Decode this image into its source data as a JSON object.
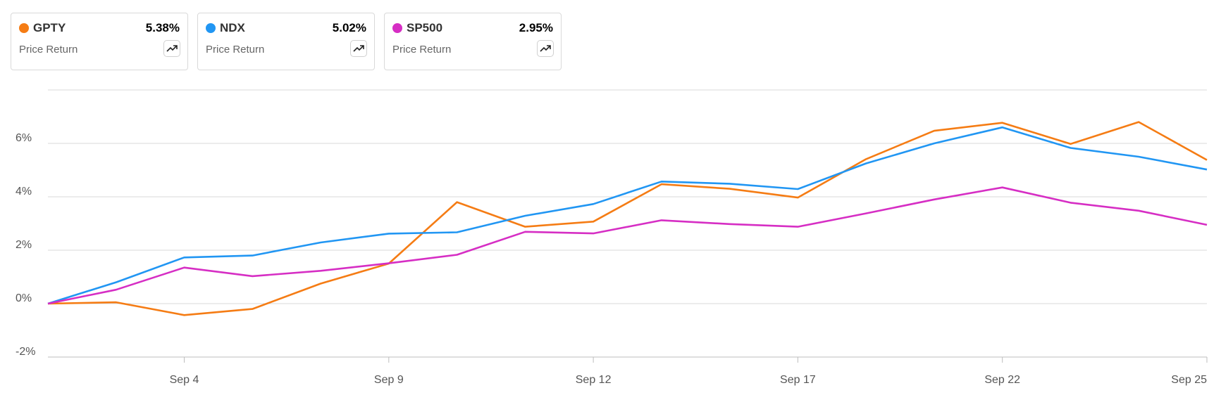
{
  "cards": [
    {
      "ticker": "GPTY",
      "value": "5.38%",
      "sub": "Price Return",
      "color": "#f57c14",
      "icon": "trending-up-icon"
    },
    {
      "ticker": "NDX",
      "value": "5.02%",
      "sub": "Price Return",
      "color": "#2196f3",
      "icon": "trending-up-icon"
    },
    {
      "ticker": "SP500",
      "value": "2.95%",
      "sub": "Price Return",
      "color": "#d62ec4",
      "icon": "trending-up-icon"
    }
  ],
  "chart_data": {
    "type": "line",
    "x": [
      0,
      1,
      2,
      3,
      4,
      5,
      6,
      7,
      8,
      9,
      10,
      11,
      12,
      13,
      14,
      15,
      16,
      17
    ],
    "x_ticks": [
      {
        "index": 2,
        "label": "Sep 4"
      },
      {
        "index": 5,
        "label": "Sep 9"
      },
      {
        "index": 8,
        "label": "Sep 12"
      },
      {
        "index": 11,
        "label": "Sep 17"
      },
      {
        "index": 14,
        "label": "Sep 22"
      },
      {
        "index": 17,
        "label": "Sep 25"
      }
    ],
    "y_ticks": [
      {
        "value": -2,
        "label": "-2%"
      },
      {
        "value": 0,
        "label": "0%"
      },
      {
        "value": 2,
        "label": "2%"
      },
      {
        "value": 4,
        "label": "4%"
      },
      {
        "value": 6,
        "label": "6%"
      }
    ],
    "ylim": [
      -2,
      8
    ],
    "grid": true,
    "series": [
      {
        "name": "GPTY",
        "color": "#f57c14",
        "values": [
          0.0,
          0.05,
          -0.43,
          -0.2,
          0.75,
          1.5,
          3.8,
          2.88,
          3.07,
          4.47,
          4.3,
          3.97,
          5.41,
          6.47,
          6.77,
          5.98,
          6.8,
          5.38
        ]
      },
      {
        "name": "NDX",
        "color": "#2196f3",
        "values": [
          0.0,
          0.8,
          1.73,
          1.8,
          2.29,
          2.62,
          2.67,
          3.29,
          3.73,
          4.57,
          4.49,
          4.29,
          5.25,
          6.0,
          6.6,
          5.83,
          5.5,
          5.02
        ]
      },
      {
        "name": "SP500",
        "color": "#d62ec4",
        "values": [
          0.0,
          0.52,
          1.35,
          1.03,
          1.23,
          1.51,
          1.83,
          2.69,
          2.63,
          3.12,
          2.98,
          2.88,
          3.38,
          3.9,
          4.35,
          3.78,
          3.48,
          2.95
        ]
      }
    ]
  }
}
